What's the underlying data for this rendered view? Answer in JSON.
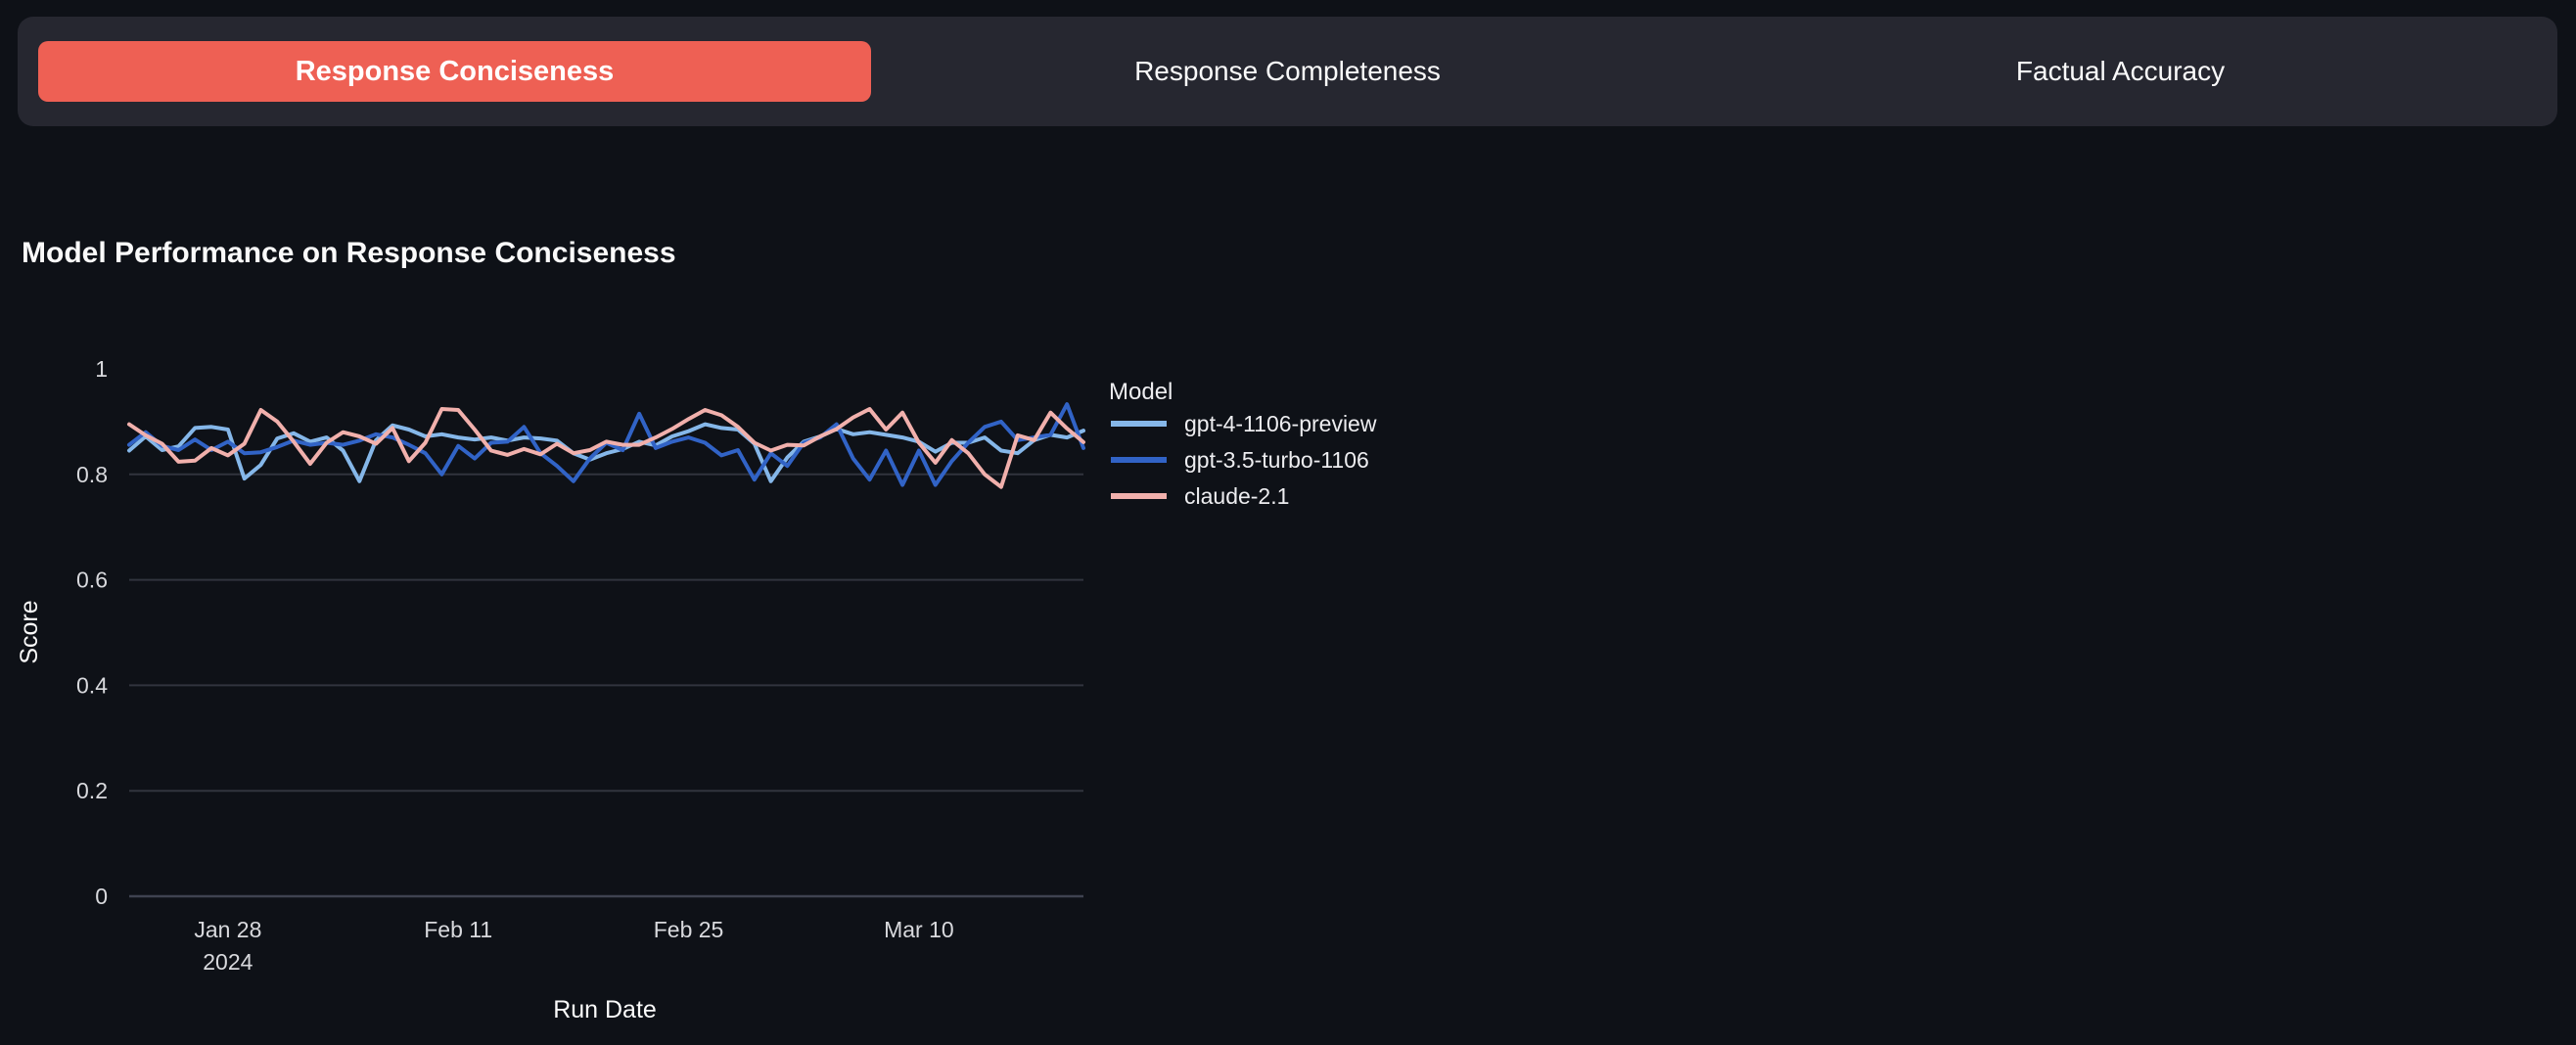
{
  "colors": {
    "page_background": "#0e1117",
    "panel_background": "#262730",
    "active_tab": "#ee6054",
    "text": "#fafafa",
    "gridline": "#31343e",
    "baseline": "#3e4250"
  },
  "tabs": {
    "items": [
      {
        "label": "Response Conciseness",
        "active": true
      },
      {
        "label": "Response Completeness",
        "active": false
      },
      {
        "label": "Factual Accuracy",
        "active": false
      }
    ]
  },
  "chart_data": {
    "type": "line",
    "title": "Model Performance on Response Conciseness",
    "xlabel": "Run Date",
    "ylabel": "Score",
    "ylim": [
      0,
      1
    ],
    "grid": true,
    "legend_title": "Model",
    "legend_position": "right",
    "x": [
      "2024-01-22",
      "2024-01-23",
      "2024-01-24",
      "2024-01-25",
      "2024-01-26",
      "2024-01-27",
      "2024-01-28",
      "2024-01-29",
      "2024-01-30",
      "2024-01-31",
      "2024-02-01",
      "2024-02-02",
      "2024-02-03",
      "2024-02-04",
      "2024-02-05",
      "2024-02-06",
      "2024-02-07",
      "2024-02-08",
      "2024-02-09",
      "2024-02-10",
      "2024-02-11",
      "2024-02-12",
      "2024-02-13",
      "2024-02-14",
      "2024-02-15",
      "2024-02-16",
      "2024-02-17",
      "2024-02-18",
      "2024-02-19",
      "2024-02-20",
      "2024-02-21",
      "2024-02-22",
      "2024-02-23",
      "2024-02-24",
      "2024-02-25",
      "2024-02-26",
      "2024-02-27",
      "2024-02-28",
      "2024-02-29",
      "2024-03-01",
      "2024-03-02",
      "2024-03-03",
      "2024-03-04",
      "2024-03-05",
      "2024-03-06",
      "2024-03-07",
      "2024-03-08",
      "2024-03-09",
      "2024-03-10",
      "2024-03-11",
      "2024-03-12",
      "2024-03-13",
      "2024-03-14",
      "2024-03-15",
      "2024-03-16",
      "2024-03-17",
      "2024-03-18",
      "2024-03-19",
      "2024-03-20"
    ],
    "x_ticks": [
      {
        "label": "Jan 28",
        "sublabel": "2024",
        "index": 6
      },
      {
        "label": "Feb 11",
        "index": 20
      },
      {
        "label": "Feb 25",
        "index": 34
      },
      {
        "label": "Mar 10",
        "index": 48
      }
    ],
    "y_ticks": [
      {
        "label": "1",
        "value": 1,
        "grid": false
      },
      {
        "label": "0.8",
        "value": 0.8,
        "grid": true
      },
      {
        "label": "0.6",
        "value": 0.6,
        "grid": true
      },
      {
        "label": "0.4",
        "value": 0.4,
        "grid": true
      },
      {
        "label": "0.2",
        "value": 0.2,
        "grid": true
      },
      {
        "label": "0",
        "value": 0,
        "grid": true
      }
    ],
    "series": [
      {
        "name": "gpt-4-1106-preview",
        "color": "#85b7e9",
        "values": [
          0.845,
          0.872,
          0.846,
          0.853,
          0.888,
          0.89,
          0.885,
          0.792,
          0.818,
          0.868,
          0.878,
          0.862,
          0.87,
          0.845,
          0.787,
          0.865,
          0.893,
          0.885,
          0.872,
          0.876,
          0.87,
          0.866,
          0.87,
          0.864,
          0.87,
          0.868,
          0.864,
          0.84,
          0.828,
          0.84,
          0.848,
          0.862,
          0.855,
          0.872,
          0.882,
          0.895,
          0.888,
          0.885,
          0.858,
          0.787,
          0.832,
          0.862,
          0.872,
          0.886,
          0.876,
          0.88,
          0.875,
          0.87,
          0.862,
          0.843,
          0.86,
          0.86,
          0.87,
          0.845,
          0.84,
          0.865,
          0.875,
          0.87,
          0.883
        ]
      },
      {
        "name": "gpt-3.5-turbo-1106",
        "color": "#3163c6",
        "values": [
          0.856,
          0.88,
          0.854,
          0.846,
          0.866,
          0.846,
          0.862,
          0.84,
          0.842,
          0.852,
          0.864,
          0.856,
          0.86,
          0.856,
          0.864,
          0.876,
          0.87,
          0.856,
          0.84,
          0.8,
          0.854,
          0.83,
          0.86,
          0.862,
          0.89,
          0.84,
          0.816,
          0.787,
          0.83,
          0.86,
          0.846,
          0.915,
          0.85,
          0.862,
          0.87,
          0.86,
          0.836,
          0.846,
          0.79,
          0.84,
          0.816,
          0.86,
          0.87,
          0.895,
          0.83,
          0.79,
          0.845,
          0.78,
          0.845,
          0.78,
          0.825,
          0.86,
          0.89,
          0.9,
          0.865,
          0.87,
          0.875,
          0.933,
          0.85
        ]
      },
      {
        "name": "claude-2.1",
        "color": "#f1b0ac",
        "values": [
          0.895,
          0.874,
          0.858,
          0.824,
          0.826,
          0.85,
          0.836,
          0.858,
          0.922,
          0.9,
          0.862,
          0.82,
          0.86,
          0.88,
          0.872,
          0.858,
          0.888,
          0.825,
          0.86,
          0.924,
          0.922,
          0.885,
          0.845,
          0.837,
          0.848,
          0.838,
          0.858,
          0.84,
          0.846,
          0.862,
          0.856,
          0.856,
          0.87,
          0.886,
          0.905,
          0.922,
          0.912,
          0.89,
          0.86,
          0.845,
          0.856,
          0.855,
          0.872,
          0.886,
          0.908,
          0.924,
          0.885,
          0.917,
          0.86,
          0.822,
          0.865,
          0.84,
          0.8,
          0.776,
          0.874,
          0.865,
          0.917,
          0.887,
          0.861
        ]
      }
    ]
  }
}
